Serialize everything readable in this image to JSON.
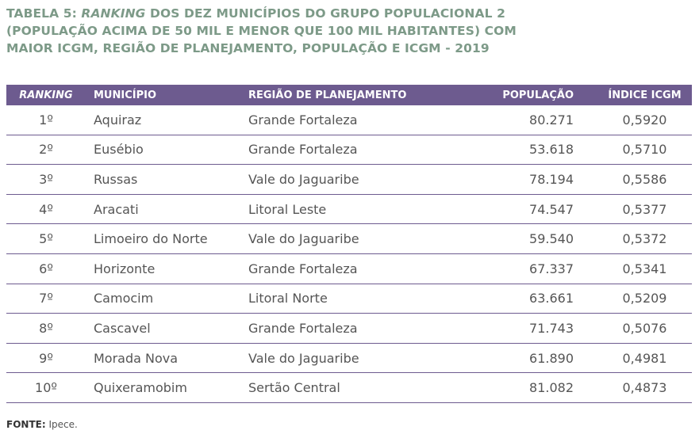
{
  "title": {
    "label": "TABELA 5:",
    "emphasis": "RANKING",
    "lines": [
      "DOS DEZ MUNICÍPIOS DO GRUPO POPULACIONAL 2",
      "(POPULAÇÃO ACIMA DE 50 MIL E MENOR QUE 100 MIL HABITANTES) COM",
      "MAIOR ICGM, REGIÃO DE PLANEJAMENTO, POPULAÇÃO E ICGM - 2019"
    ]
  },
  "table": {
    "headers": [
      "RANKING",
      "MUNICÍPIO",
      "REGIÃO DE PLANEJAMENTO",
      "POPULAÇÃO",
      "ÍNDICE ICGM"
    ],
    "rows": [
      [
        "1º",
        "Aquiraz",
        "Grande Fortaleza",
        "80.271",
        "0,5920"
      ],
      [
        "2º",
        "Eusébio",
        "Grande Fortaleza",
        "53.618",
        "0,5710"
      ],
      [
        "3º",
        "Russas",
        "Vale do Jaguaribe",
        "78.194",
        "0,5586"
      ],
      [
        "4º",
        "Aracati",
        "Litoral Leste",
        "74.547",
        "0,5377"
      ],
      [
        "5º",
        "Limoeiro do Norte",
        "Vale do Jaguaribe",
        "59.540",
        "0,5372"
      ],
      [
        "6º",
        "Horizonte",
        "Grande Fortaleza",
        "67.337",
        "0,5341"
      ],
      [
        "7º",
        "Camocim",
        "Litoral Norte",
        "63.661",
        "0,5209"
      ],
      [
        "8º",
        "Cascavel",
        "Grande Fortaleza",
        "71.743",
        "0,5076"
      ],
      [
        "9º",
        "Morada Nova",
        "Vale do Jaguaribe",
        "61.890",
        "0,4981"
      ],
      [
        "10º",
        "Quixeramobim",
        "Sertão Central",
        "81.082",
        "0,4873"
      ]
    ]
  },
  "source": {
    "label": "FONTE:",
    "text": "Ipece."
  }
}
